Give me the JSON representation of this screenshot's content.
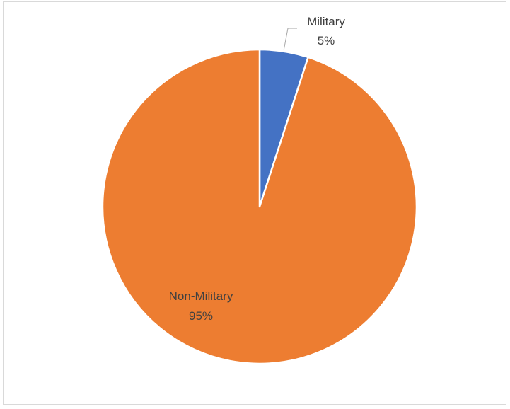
{
  "chart_data": {
    "type": "pie",
    "categories": [
      "Military",
      "Non-Military"
    ],
    "values": [
      5,
      95
    ],
    "unit": "%",
    "labels": [
      {
        "category": "Military",
        "percent": "5%"
      },
      {
        "category": "Non-Military",
        "percent": "95%"
      }
    ],
    "colors": [
      "#4472c4",
      "#ed7d31"
    ],
    "title": "",
    "legend": "none"
  }
}
